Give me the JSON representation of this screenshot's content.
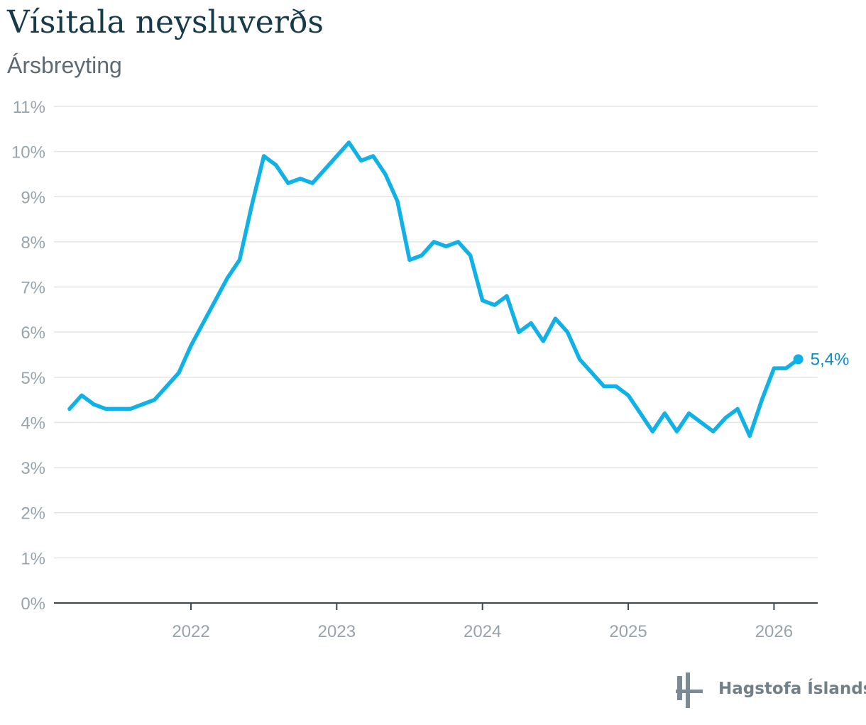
{
  "colors": {
    "line": "#0fb1e6",
    "end_label": "#0a8fbf",
    "grid": "#e1e5e8",
    "axis": "#3d4850",
    "tick_text": "#98a4ab"
  },
  "brand": {
    "name": "Hagstofa Íslands",
    "logo_icon": "hagstofa-logo-icon"
  },
  "chart_data": {
    "type": "line",
    "title": "Vísitala neysluverðs",
    "subtitle": "Ársbreyting",
    "xlabel": "",
    "ylabel": "",
    "ylim": [
      0,
      11
    ],
    "yticks": [
      0,
      1,
      2,
      3,
      4,
      5,
      6,
      7,
      8,
      9,
      10,
      11
    ],
    "ytick_labels": [
      "0%",
      "1%",
      "2%",
      "3%",
      "4%",
      "5%",
      "6%",
      "7%",
      "8%",
      "9%",
      "10%",
      "11%"
    ],
    "xlim": [
      2021.06,
      2026.3
    ],
    "xticks": [
      2022,
      2023,
      2024,
      2025,
      2026
    ],
    "xtick_labels": [
      "2022",
      "2023",
      "2024",
      "2025",
      "2026"
    ],
    "grid": true,
    "end_label": "5,4%",
    "series": [
      {
        "name": "Ársbreyting",
        "points": [
          {
            "x": 2021.1667,
            "y": 4.3
          },
          {
            "x": 2021.25,
            "y": 4.6
          },
          {
            "x": 2021.3333,
            "y": 4.4
          },
          {
            "x": 2021.4167,
            "y": 4.3
          },
          {
            "x": 2021.5,
            "y": 4.3
          },
          {
            "x": 2021.5833,
            "y": 4.3
          },
          {
            "x": 2021.6667,
            "y": 4.4
          },
          {
            "x": 2021.75,
            "y": 4.5
          },
          {
            "x": 2021.8333,
            "y": 4.8
          },
          {
            "x": 2021.9167,
            "y": 5.1
          },
          {
            "x": 2022.0,
            "y": 5.7
          },
          {
            "x": 2022.0833,
            "y": 6.2
          },
          {
            "x": 2022.1667,
            "y": 6.7
          },
          {
            "x": 2022.25,
            "y": 7.2
          },
          {
            "x": 2022.3333,
            "y": 7.6
          },
          {
            "x": 2022.4167,
            "y": 8.8
          },
          {
            "x": 2022.5,
            "y": 9.9
          },
          {
            "x": 2022.5833,
            "y": 9.7
          },
          {
            "x": 2022.6667,
            "y": 9.3
          },
          {
            "x": 2022.75,
            "y": 9.4
          },
          {
            "x": 2022.8333,
            "y": 9.3
          },
          {
            "x": 2022.9167,
            "y": 9.6
          },
          {
            "x": 2023.0,
            "y": 9.9
          },
          {
            "x": 2023.0833,
            "y": 10.2
          },
          {
            "x": 2023.1667,
            "y": 9.8
          },
          {
            "x": 2023.25,
            "y": 9.9
          },
          {
            "x": 2023.3333,
            "y": 9.5
          },
          {
            "x": 2023.4167,
            "y": 8.9
          },
          {
            "x": 2023.5,
            "y": 7.6
          },
          {
            "x": 2023.5833,
            "y": 7.7
          },
          {
            "x": 2023.6667,
            "y": 8.0
          },
          {
            "x": 2023.75,
            "y": 7.9
          },
          {
            "x": 2023.8333,
            "y": 8.0
          },
          {
            "x": 2023.9167,
            "y": 7.7
          },
          {
            "x": 2024.0,
            "y": 6.7
          },
          {
            "x": 2024.0833,
            "y": 6.6
          },
          {
            "x": 2024.1667,
            "y": 6.8
          },
          {
            "x": 2024.25,
            "y": 6.0
          },
          {
            "x": 2024.3333,
            "y": 6.2
          },
          {
            "x": 2024.4167,
            "y": 5.8
          },
          {
            "x": 2024.5,
            "y": 6.3
          },
          {
            "x": 2024.5833,
            "y": 6.0
          },
          {
            "x": 2024.6667,
            "y": 5.4
          },
          {
            "x": 2024.75,
            "y": 5.1
          },
          {
            "x": 2024.8333,
            "y": 4.8
          },
          {
            "x": 2024.9167,
            "y": 4.8
          },
          {
            "x": 2025.0,
            "y": 4.6
          },
          {
            "x": 2025.0833,
            "y": 4.2
          },
          {
            "x": 2025.1667,
            "y": 3.8
          },
          {
            "x": 2025.25,
            "y": 4.2
          },
          {
            "x": 2025.3333,
            "y": 3.8
          },
          {
            "x": 2025.4167,
            "y": 4.2
          },
          {
            "x": 2025.5,
            "y": 4.0
          },
          {
            "x": 2025.5833,
            "y": 3.8
          },
          {
            "x": 2025.6667,
            "y": 4.1
          },
          {
            "x": 2025.75,
            "y": 4.3
          },
          {
            "x": 2025.8333,
            "y": 3.7
          },
          {
            "x": 2025.9167,
            "y": 4.5
          },
          {
            "x": 2026.0,
            "y": 5.2
          },
          {
            "x": 2026.0833,
            "y": 5.2
          },
          {
            "x": 2026.1667,
            "y": 5.4
          }
        ]
      }
    ]
  }
}
